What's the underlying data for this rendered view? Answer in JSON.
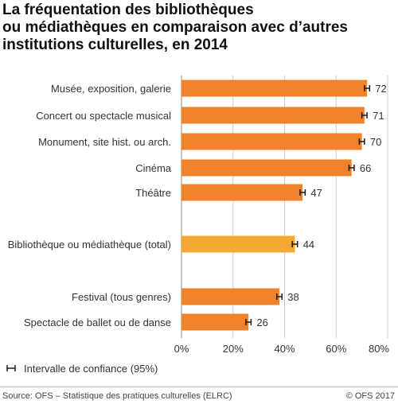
{
  "title_lines": [
    "La fréquentation des bibliothèques",
    "ou médiathèques en comparaison avec d’autres",
    "institutions culturelles, en 2014"
  ],
  "legend": {
    "label": "Intervalle de confiance (95%)"
  },
  "footer": {
    "source": "Source: OFS – Statistique des pratiques culturelles (ELRC)",
    "copyright": "© OFS 2017"
  },
  "colors": {
    "bar": "#f0822c",
    "highlight": "#f5a733",
    "grid": "#cfcfcf",
    "error": "#1a1a1a"
  },
  "chart_data": {
    "type": "bar",
    "orientation": "horizontal",
    "categories": [
      "Musée, exposition, galerie",
      "Concert ou spectacle musical",
      "Monument, site hist. ou arch.",
      "Cinéma",
      "Théâtre",
      "Bibliothèque ou médiathèque (total)",
      "Festival (tous genres)",
      "Spectacle de ballet ou de danse"
    ],
    "values": [
      72,
      71,
      70,
      66,
      47,
      44,
      38,
      26
    ],
    "value_labels": [
      "72",
      "71",
      "70",
      "66",
      "47",
      "44",
      "38",
      "26"
    ],
    "highlighted": [
      false,
      false,
      false,
      false,
      false,
      true,
      false,
      false
    ],
    "error_margin": [
      1,
      1,
      1,
      1,
      1,
      1,
      1,
      1
    ],
    "xlim": [
      0,
      80
    ],
    "xticks": [
      0,
      20,
      40,
      60,
      80
    ],
    "xtick_labels": [
      "0%",
      "20%",
      "40%",
      "60%",
      "80%"
    ],
    "grid": true,
    "legend_position": "bottom-left"
  }
}
